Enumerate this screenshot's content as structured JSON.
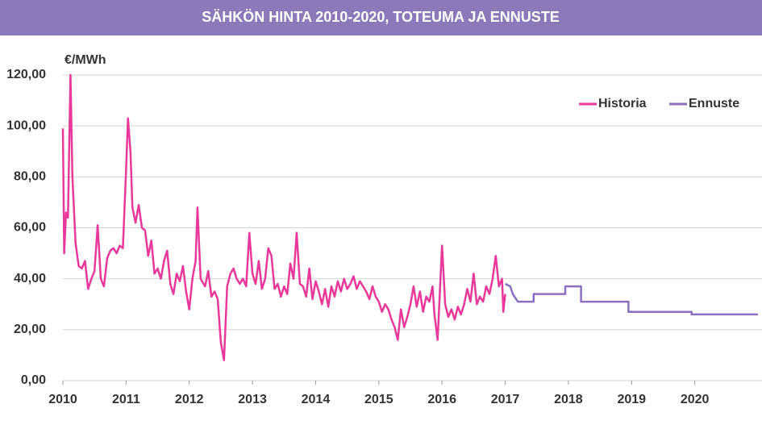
{
  "chart_data": {
    "type": "line",
    "title": "SÄHKÖN HINTA 2010-2020, TOTEUMA JA ENNUSTE",
    "y_label": "€/MWh",
    "xlim": [
      2010,
      2021
    ],
    "xticks": [
      2010,
      2011,
      2012,
      2013,
      2014,
      2015,
      2016,
      2017,
      2018,
      2019,
      2020
    ],
    "ylim": [
      0,
      120
    ],
    "yticks": [
      {
        "value": 0,
        "label": "0,00"
      },
      {
        "value": 20,
        "label": "20,00"
      },
      {
        "value": 40,
        "label": "40,00"
      },
      {
        "value": 60,
        "label": "60,00"
      },
      {
        "value": 80,
        "label": "80,00"
      },
      {
        "value": 100,
        "label": "100,00"
      },
      {
        "value": 120,
        "label": "120,00"
      }
    ],
    "grid": true,
    "legend": "upper right",
    "series": [
      {
        "name": "Historia",
        "color": "#e8399a",
        "x": [
          2010.0,
          2010.02,
          2010.05,
          2010.08,
          2010.12,
          2010.15,
          2010.2,
          2010.25,
          2010.3,
          2010.35,
          2010.4,
          2010.45,
          2010.5,
          2010.55,
          2010.6,
          2010.65,
          2010.7,
          2010.75,
          2010.8,
          2010.85,
          2010.9,
          2010.95,
          2011.0,
          2011.03,
          2011.07,
          2011.1,
          2011.15,
          2011.2,
          2011.25,
          2011.3,
          2011.35,
          2011.4,
          2011.45,
          2011.5,
          2011.55,
          2011.6,
          2011.65,
          2011.7,
          2011.75,
          2011.8,
          2011.85,
          2011.9,
          2011.95,
          2012.0,
          2012.05,
          2012.1,
          2012.13,
          2012.18,
          2012.25,
          2012.3,
          2012.35,
          2012.4,
          2012.45,
          2012.5,
          2012.55,
          2012.6,
          2012.65,
          2012.7,
          2012.75,
          2012.8,
          2012.85,
          2012.9,
          2012.95,
          2013.0,
          2013.05,
          2013.1,
          2013.15,
          2013.2,
          2013.25,
          2013.3,
          2013.35,
          2013.4,
          2013.45,
          2013.5,
          2013.55,
          2013.6,
          2013.65,
          2013.7,
          2013.75,
          2013.8,
          2013.85,
          2013.9,
          2013.95,
          2014.0,
          2014.05,
          2014.1,
          2014.15,
          2014.2,
          2014.25,
          2014.3,
          2014.35,
          2014.4,
          2014.45,
          2014.5,
          2014.55,
          2014.6,
          2014.65,
          2014.7,
          2014.75,
          2014.8,
          2014.85,
          2014.9,
          2014.95,
          2015.0,
          2015.05,
          2015.1,
          2015.15,
          2015.2,
          2015.25,
          2015.3,
          2015.35,
          2015.4,
          2015.45,
          2015.5,
          2015.55,
          2015.6,
          2015.65,
          2015.7,
          2015.75,
          2015.8,
          2015.85,
          2015.88,
          2015.93,
          2016.0,
          2016.05,
          2016.1,
          2016.15,
          2016.2,
          2016.25,
          2016.3,
          2016.35,
          2016.4,
          2016.45,
          2016.5,
          2016.55,
          2016.6,
          2016.65,
          2016.7,
          2016.75,
          2016.8,
          2016.85,
          2016.9,
          2016.95,
          2016.97,
          2017.0
        ],
        "values": [
          99,
          50,
          66,
          64,
          120,
          80,
          54,
          45,
          44,
          47,
          36,
          40,
          43,
          61,
          40,
          37,
          48,
          51,
          52,
          50,
          53,
          52,
          83,
          103,
          90,
          68,
          62,
          69,
          60,
          59,
          49,
          55,
          42,
          44,
          40,
          47,
          51,
          38,
          34,
          42,
          39,
          45,
          35,
          28,
          40,
          47,
          68,
          40,
          37,
          43,
          33,
          35,
          32,
          15,
          8,
          37,
          42,
          44,
          40,
          38,
          40,
          37,
          58,
          42,
          38,
          47,
          36,
          40,
          52,
          49,
          36,
          38,
          33,
          37,
          34,
          46,
          40,
          58,
          38,
          37,
          33,
          44,
          32,
          39,
          35,
          30,
          36,
          29,
          37,
          33,
          39,
          35,
          40,
          36,
          38,
          41,
          36,
          39,
          37,
          35,
          32,
          37,
          33,
          31,
          27,
          30,
          28,
          24,
          21,
          16,
          28,
          21,
          25,
          30,
          37,
          29,
          35,
          27,
          33,
          31,
          37,
          26,
          16,
          53,
          30,
          25,
          28,
          24,
          29,
          26,
          30,
          36,
          31,
          42,
          30,
          33,
          31,
          37,
          34,
          40,
          49,
          37,
          40,
          27,
          34
        ]
      },
      {
        "name": "Ennuste",
        "color": "#8b6fc0",
        "x": [
          2017.0,
          2017.08,
          2017.12,
          2017.2,
          2017.45,
          2017.45,
          2017.95,
          2017.95,
          2018.2,
          2018.2,
          2018.95,
          2018.95,
          2019.95,
          2019.95,
          2021
        ],
        "values": [
          38,
          37,
          34,
          31,
          31,
          34,
          34,
          37,
          37,
          31,
          31,
          27,
          27,
          26,
          26
        ]
      }
    ]
  }
}
